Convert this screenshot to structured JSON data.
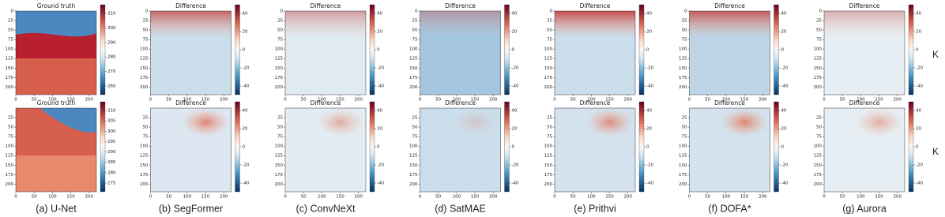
{
  "figure": {
    "unit": "K",
    "captions": [
      "(a) U-Net",
      "(b) SegFormer",
      "(c) ConvNeXt",
      "(d) SatMAE",
      "(e) Prithvi",
      "(f) DOFA*",
      "(g) Aurora"
    ],
    "rows": [
      {
        "panels": [
          {
            "title": "Ground truth",
            "xticks": [
              0,
              50,
              100,
              150,
              200
            ],
            "yticks": [
              0,
              25,
              50,
              75,
              100,
              125,
              150,
              175,
              200
            ],
            "cbar_ticks": [
              310,
              300,
              290,
              280,
              270,
              260
            ]
          },
          {
            "title": "Difference",
            "xticks": [
              0,
              50,
              100,
              150,
              200
            ],
            "yticks": [
              0,
              25,
              50,
              75,
              100,
              125,
              150,
              175,
              200
            ],
            "cbar_ticks": [
              40,
              20,
              0,
              -20,
              -40
            ]
          },
          {
            "title": "Difference",
            "xticks": [
              0,
              50,
              100,
              150,
              200
            ],
            "yticks": [
              0,
              25,
              50,
              75,
              100,
              125,
              150,
              175,
              200
            ],
            "cbar_ticks": [
              40,
              20,
              0,
              -20,
              -40
            ]
          },
          {
            "title": "Difference",
            "xticks": [
              0,
              50,
              100,
              150,
              200
            ],
            "yticks": [
              0,
              25,
              50,
              75,
              100,
              125,
              150,
              175,
              200
            ],
            "cbar_ticks": [
              40,
              20,
              0,
              -20,
              -40
            ]
          },
          {
            "title": "Difference",
            "xticks": [
              0,
              50,
              100,
              150,
              200
            ],
            "yticks": [
              0,
              25,
              50,
              75,
              100,
              125,
              150,
              175,
              200
            ],
            "cbar_ticks": [
              40,
              20,
              0,
              -20,
              -40
            ]
          },
          {
            "title": "Difference",
            "xticks": [
              0,
              50,
              100,
              150,
              200
            ],
            "yticks": [
              0,
              25,
              50,
              75,
              100,
              125,
              150,
              175,
              200
            ],
            "cbar_ticks": [
              40,
              20,
              0,
              -20,
              -40
            ]
          },
          {
            "title": "Difference",
            "xticks": [
              0,
              50,
              100,
              150,
              200
            ],
            "yticks": [
              0,
              25,
              50,
              75,
              100,
              125,
              150,
              175,
              200
            ],
            "cbar_ticks": [
              40,
              20,
              0,
              -20,
              -40
            ]
          }
        ]
      },
      {
        "panels": [
          {
            "title": "Ground truth",
            "xticks": [
              0,
              50,
              100,
              150,
              200
            ],
            "yticks": [
              25,
              50,
              75,
              100,
              125,
              150,
              175,
              200
            ],
            "cbar_ticks": [
              310,
              305,
              300,
              295,
              290,
              285,
              280,
              275
            ]
          },
          {
            "title": "Difference",
            "xticks": [
              0,
              50,
              100,
              150,
              200
            ],
            "yticks": [
              25,
              50,
              75,
              100,
              125,
              150,
              175,
              200
            ],
            "cbar_ticks": [
              40,
              20,
              0,
              -20,
              -40
            ]
          },
          {
            "title": "Difference",
            "xticks": [
              0,
              50,
              100,
              150,
              200
            ],
            "yticks": [
              25,
              50,
              75,
              100,
              125,
              150,
              175,
              200
            ],
            "cbar_ticks": [
              40,
              20,
              0,
              -20,
              -40
            ]
          },
          {
            "title": "Difference",
            "xticks": [
              0,
              50,
              100,
              150,
              200
            ],
            "yticks": [
              25,
              50,
              75,
              100,
              125,
              150,
              175,
              200
            ],
            "cbar_ticks": [
              40,
              20,
              0,
              -20,
              -40
            ]
          },
          {
            "title": "Difference",
            "xticks": [
              0,
              50,
              100,
              150,
              200
            ],
            "yticks": [
              25,
              50,
              75,
              100,
              125,
              150,
              175,
              200
            ],
            "cbar_ticks": [
              40,
              20,
              0,
              -20,
              -40
            ]
          },
          {
            "title": "Difference",
            "xticks": [
              0,
              50,
              100,
              150,
              200
            ],
            "yticks": [
              25,
              50,
              75,
              100,
              125,
              150,
              175,
              200
            ],
            "cbar_ticks": [
              40,
              20,
              0,
              -20,
              -40
            ]
          },
          {
            "title": "Difference",
            "xticks": [
              0,
              50,
              100,
              150,
              200
            ],
            "yticks": [
              25,
              50,
              75,
              100,
              125,
              150,
              175,
              200
            ],
            "cbar_ticks": [
              40,
              20,
              0,
              -20,
              -40
            ]
          }
        ]
      }
    ]
  }
}
